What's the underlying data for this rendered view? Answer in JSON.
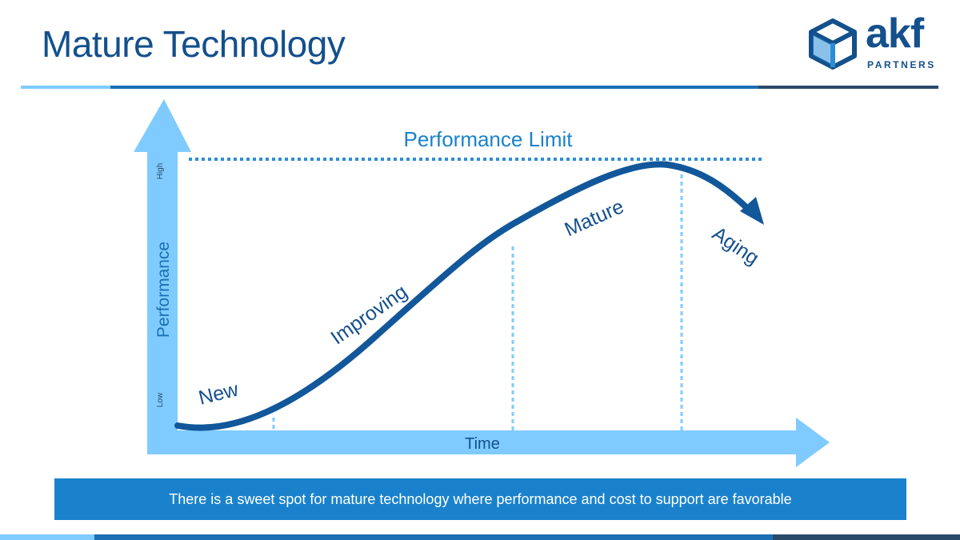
{
  "slide": {
    "title": "Mature Technology",
    "callout": "There is a sweet spot for mature technology where performance and cost to support are favorable"
  },
  "logo": {
    "word": "akf",
    "sub": "PARTNERS",
    "icon": "cube-icon"
  },
  "diagram": {
    "limit_label": "Performance Limit",
    "y_axis_label": "Performance",
    "y_high": "High",
    "y_low": "Low",
    "x_axis_label": "Time",
    "stages": [
      "New",
      "Improving",
      "Mature",
      "Aging"
    ]
  },
  "colors": {
    "title": "#14508c",
    "axis": "#7fcbff",
    "curve": "#12579a",
    "limit": "#2a8ed6",
    "callout_bg": "#1a82cc",
    "rule_light": "#7fcbff",
    "rule_dark": "#14508c",
    "rule_darkest": "#2a4a6a"
  }
}
